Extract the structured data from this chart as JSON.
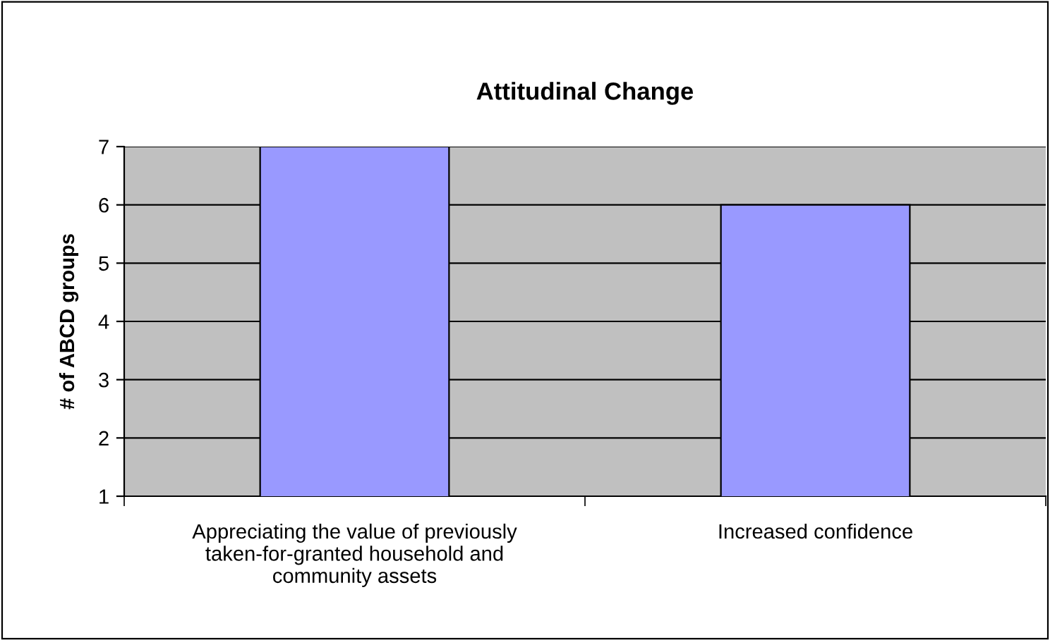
{
  "chart_data": {
    "type": "bar",
    "title": "Attitudinal Change",
    "ylabel": "# of ABCD groups",
    "categories": [
      "Appreciating the value of previously\ntaken-for-granted household and\ncommunity assets",
      "Increased confidence"
    ],
    "values": [
      7,
      6
    ],
    "color": "#9999ff",
    "ylim": [
      1,
      7
    ],
    "yticks": [
      1,
      2,
      3,
      4,
      5,
      6,
      7
    ],
    "grid": "y",
    "legend": false
  }
}
